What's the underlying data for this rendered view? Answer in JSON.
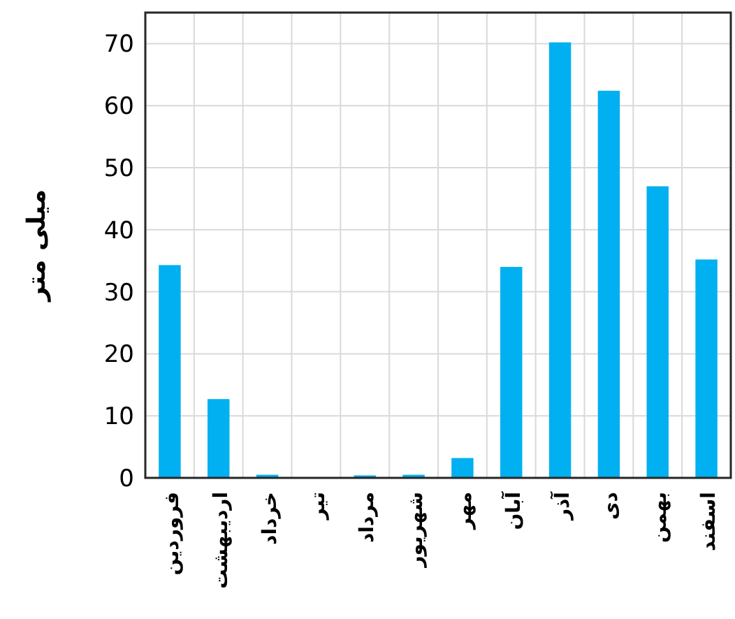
{
  "chart_data": {
    "type": "bar",
    "ylabel": "میلی متر",
    "categories": [
      "فروردین",
      "اردیبهشت",
      "خرداد",
      "تیر",
      "مرداد",
      "شهریور",
      "مهر",
      "آبان",
      "آذر",
      "دی",
      "بهمن",
      "اسفند"
    ],
    "values": [
      34.3,
      12.7,
      0.5,
      0,
      0.4,
      0.5,
      3.2,
      34.0,
      70.2,
      62.4,
      47.0,
      35.2
    ],
    "color": "#00b0f0",
    "ylim": [
      0,
      75
    ],
    "yticks": [
      0,
      10,
      20,
      30,
      40,
      50,
      60,
      70
    ],
    "grid": true
  }
}
